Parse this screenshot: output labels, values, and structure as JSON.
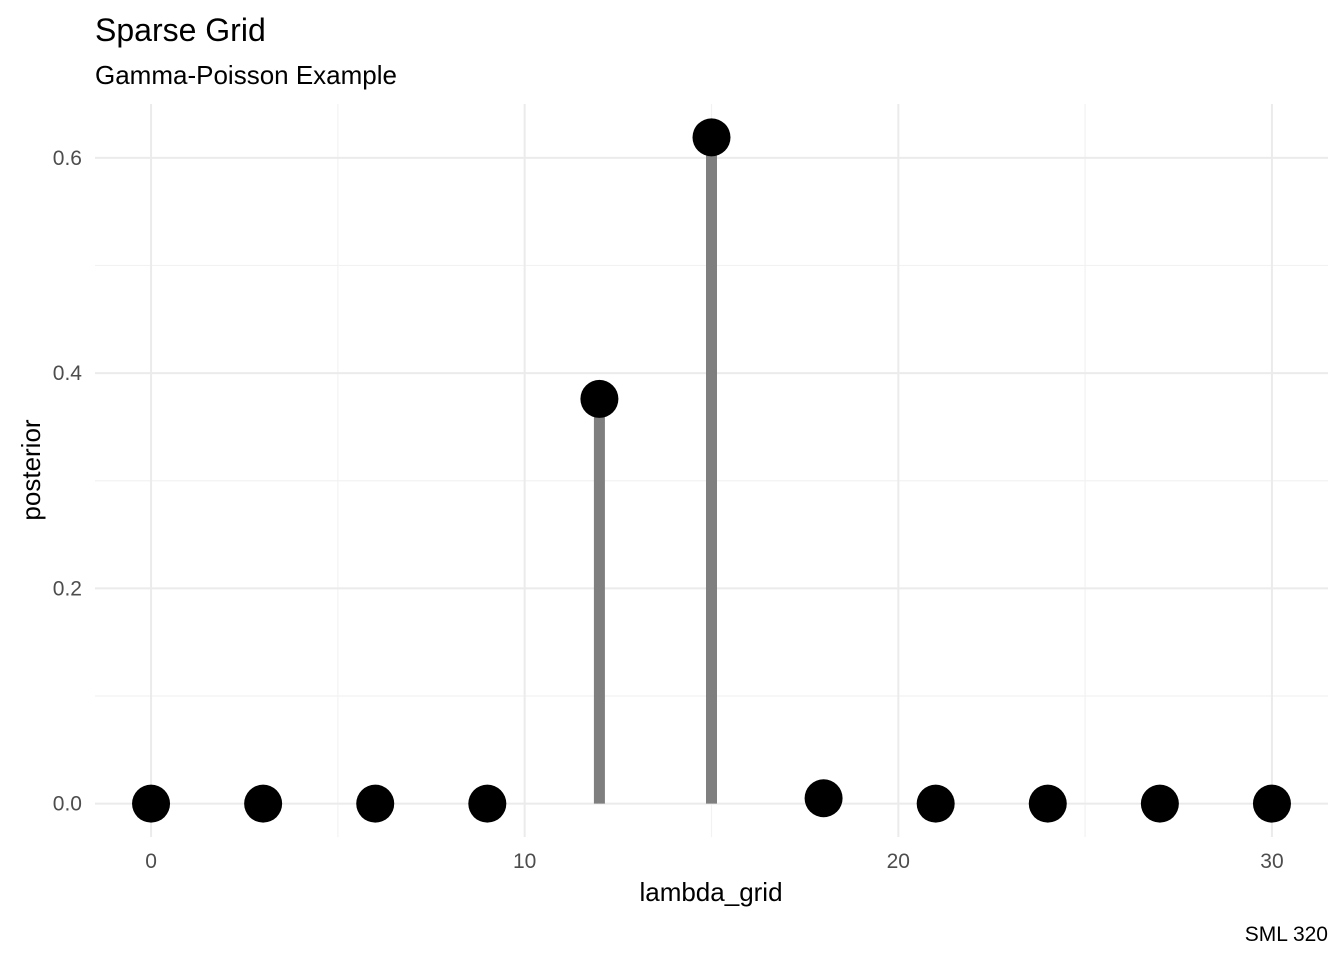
{
  "chart_data": {
    "type": "scatter",
    "title": "Sparse Grid",
    "subtitle": "Gamma-Poisson Example",
    "xlabel": "lambda_grid",
    "ylabel": "posterior",
    "caption": "SML 320",
    "x": [
      0,
      3,
      6,
      9,
      12,
      15,
      18,
      21,
      24,
      27,
      30
    ],
    "values": [
      0.0,
      0.0,
      0.0,
      0.0,
      0.376,
      0.619,
      0.005,
      0.0,
      0.0,
      0.0,
      0.0
    ],
    "stems": [
      {
        "x": 12,
        "y": 0.376
      },
      {
        "x": 15,
        "y": 0.619
      }
    ],
    "xlim": [
      -1.5,
      31.5
    ],
    "ylim": [
      -0.031,
      0.65
    ],
    "x_ticks": [
      0,
      10,
      20,
      30
    ],
    "x_tick_labels": [
      "0",
      "10",
      "20",
      "30"
    ],
    "y_ticks": [
      0.0,
      0.2,
      0.4,
      0.6
    ],
    "y_tick_labels": [
      "0.0",
      "0.2",
      "0.4",
      "0.6"
    ],
    "grid": true,
    "legend": "none",
    "colors": {
      "points": "#000000",
      "stems": "#7f7f7f",
      "grid": "#ebebeb"
    }
  }
}
